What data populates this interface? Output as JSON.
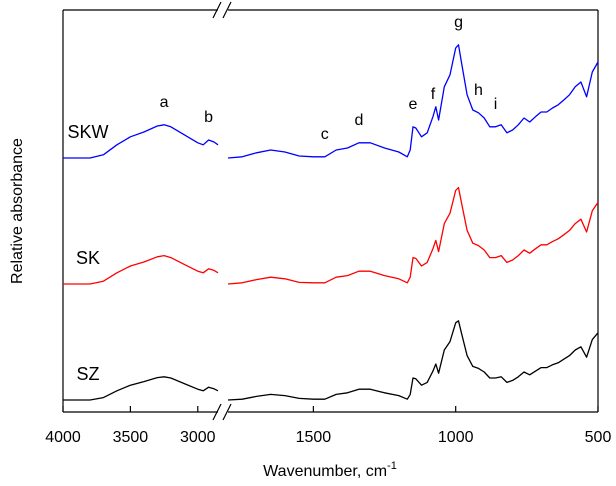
{
  "chart_data": {
    "type": "line",
    "xlabel": "Wavenumber, cm",
    "xlabel_sup": "-1",
    "ylabel": "Relative absorbance",
    "xlim": [
      4000,
      500
    ],
    "xbreak": [
      2850,
      1800
    ],
    "xticks": [
      4000,
      3500,
      3000,
      1500,
      1000,
      500
    ],
    "ylim": [
      0,
      100.5
    ],
    "x": [
      4000,
      3800,
      3700,
      3600,
      3500,
      3400,
      3300,
      3250,
      3200,
      3100,
      3000,
      2960,
      2920,
      2880,
      2850,
      2300,
      1800,
      1750,
      1700,
      1650,
      1600,
      1550,
      1500,
      1460,
      1420,
      1380,
      1340,
      1300,
      1250,
      1200,
      1170,
      1160,
      1150,
      1140,
      1120,
      1100,
      1080,
      1070,
      1060,
      1040,
      1020,
      1000,
      990,
      980,
      960,
      940,
      920,
      900,
      880,
      860,
      840,
      820,
      800,
      780,
      760,
      740,
      720,
      700,
      680,
      660,
      640,
      620,
      600,
      580,
      560,
      540,
      520,
      500
    ],
    "series": [
      {
        "name": "SKW",
        "color": "#0000ff",
        "values": [
          63.5,
          63.5,
          64.3,
          66.8,
          68.8,
          70,
          71.5,
          71.8,
          71.3,
          69.3,
          67.3,
          66.8,
          68,
          67.5,
          66.8,
          null,
          63.5,
          63.8,
          64.8,
          65.5,
          65,
          64,
          63.8,
          63.8,
          65.5,
          66,
          67.3,
          67.3,
          66,
          65,
          63.8,
          65.5,
          71.3,
          71,
          68.8,
          69.8,
          73.8,
          76.3,
          73,
          81.3,
          84.3,
          91,
          91.8,
          87.5,
          79.3,
          75.5,
          74.8,
          73.5,
          71.3,
          71.3,
          71.8,
          69.8,
          70.5,
          71.8,
          73.5,
          72.5,
          73.8,
          75,
          75,
          76,
          76.8,
          78,
          79.3,
          81.3,
          82.5,
          78.8,
          85,
          87.5
        ]
      },
      {
        "name": "SK",
        "color": "#ff0000",
        "values": [
          32,
          32,
          32.7,
          34.8,
          36.5,
          37.5,
          38.8,
          39.1,
          38.6,
          36.9,
          35.2,
          34.8,
          35.8,
          35.4,
          34.8,
          null,
          32,
          32.3,
          33.1,
          33.7,
          33.3,
          32.4,
          32.3,
          32.3,
          33.7,
          34.1,
          35.2,
          35.2,
          34.1,
          33.3,
          32.3,
          33.7,
          38.6,
          38.4,
          36.5,
          37.4,
          40.8,
          42.9,
          40.1,
          47.1,
          49.7,
          55.4,
          56.1,
          52.4,
          45.4,
          42.2,
          41.6,
          40.5,
          38.6,
          38.6,
          39.1,
          37.4,
          38,
          39.1,
          40.5,
          39.7,
          40.8,
          41.8,
          41.8,
          42.6,
          43.3,
          44.3,
          45.4,
          47.1,
          48.2,
          45,
          50.3,
          52.4
        ]
      },
      {
        "name": "SZ",
        "color": "#000000",
        "values": [
          3,
          3,
          3.6,
          5.3,
          6.7,
          7.6,
          8.6,
          8.8,
          8.5,
          7.1,
          5.7,
          5.3,
          6.2,
          5.8,
          5.3,
          null,
          3,
          3.2,
          3.9,
          4.4,
          4.1,
          3.4,
          3.2,
          3.2,
          4.4,
          4.8,
          5.7,
          5.7,
          4.8,
          4.1,
          3.2,
          4.4,
          8.5,
          8.3,
          6.7,
          7.4,
          10.2,
          12,
          9.7,
          15.5,
          17.6,
          22.3,
          22.8,
          19.8,
          14.1,
          11.4,
          10.9,
          10,
          8.5,
          8.5,
          8.8,
          7.4,
          7.9,
          8.8,
          10,
          9.3,
          10.2,
          11.1,
          11.1,
          11.8,
          12.3,
          13.2,
          14.1,
          15.5,
          16.3,
          13.7,
          18.1,
          19.8
        ]
      }
    ],
    "annotations": [
      {
        "text": "a",
        "x": 3250
      },
      {
        "text": "b",
        "x": 2920
      },
      {
        "text": "c",
        "x": 1460
      },
      {
        "text": "d",
        "x": 1340
      },
      {
        "text": "e",
        "x": 1150
      },
      {
        "text": "f",
        "x": 1080
      },
      {
        "text": "g",
        "x": 990
      },
      {
        "text": "h",
        "x": 920
      },
      {
        "text": "i",
        "x": 860
      }
    ]
  }
}
